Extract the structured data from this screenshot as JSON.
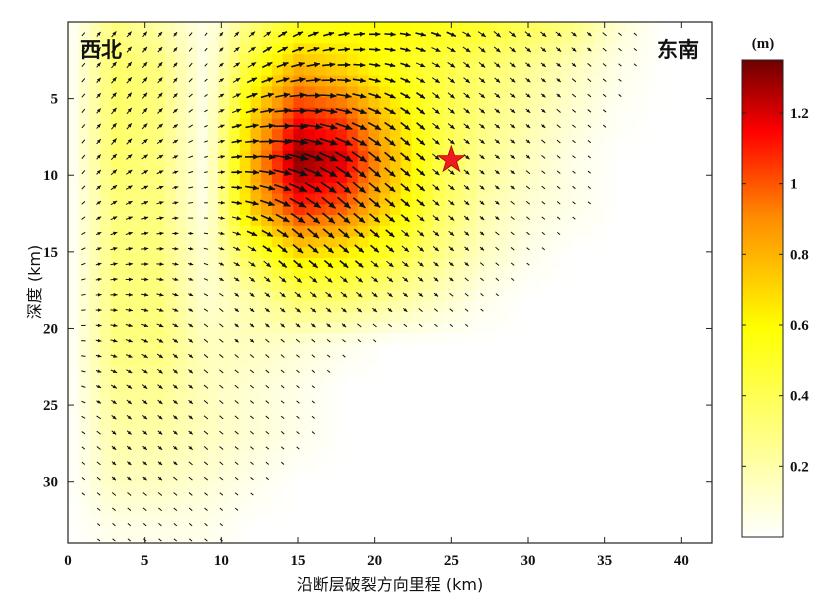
{
  "chart_data": {
    "type": "heatmap",
    "title": "",
    "xlabel": "沿断层破裂方向里程 (km)",
    "ylabel": "深度 (km)",
    "xlim": [
      0,
      42
    ],
    "ylim": [
      34,
      0
    ],
    "y_inverted": true,
    "xticks": [
      0,
      5,
      10,
      15,
      20,
      25,
      30,
      35,
      40
    ],
    "yticks": [
      5,
      10,
      15,
      20,
      25,
      30
    ],
    "grid": false,
    "colormap": [
      "#ffffff",
      "#ffff00",
      "#ff8c00",
      "#ff0000",
      "#6e0000"
    ],
    "colorbar": {
      "label": "(m)",
      "range": [
        0,
        1.35
      ],
      "ticks": [
        0.2,
        0.4,
        0.6,
        0.8,
        1,
        1.2
      ],
      "placement": "right"
    },
    "annotations": {
      "left": "西北",
      "right": "东南"
    },
    "marker": {
      "symbol": "star",
      "x": 25,
      "y": 9,
      "color": "#ee1c1c"
    },
    "arrows": "slip direction vectors, length proportional to slip",
    "grid_x_km": [
      0,
      3,
      6,
      9,
      12,
      15,
      18,
      21,
      24,
      27,
      30,
      33,
      36,
      39,
      42
    ],
    "grid_depth_km": [
      0,
      3,
      6,
      9,
      12,
      15,
      18,
      21,
      24,
      27,
      30,
      33
    ],
    "slip_m": [
      [
        0,
        0.3,
        0.2,
        0.05,
        0.3,
        0.5,
        0.55,
        0.6,
        0.55,
        0.5,
        0.4,
        0.3,
        0.1,
        0,
        0
      ],
      [
        0,
        0.35,
        0.3,
        0.05,
        0.5,
        0.8,
        0.7,
        0.55,
        0.45,
        0.35,
        0.25,
        0.15,
        0.05,
        0,
        0
      ],
      [
        0,
        0.35,
        0.3,
        0.05,
        0.7,
        1.1,
        1.0,
        0.7,
        0.45,
        0.3,
        0.2,
        0.1,
        0.02,
        0,
        0
      ],
      [
        0,
        0.35,
        0.3,
        0.05,
        0.8,
        1.32,
        1.2,
        0.8,
        0.45,
        0.25,
        0.15,
        0.05,
        0,
        0,
        0
      ],
      [
        0,
        0.3,
        0.3,
        0.05,
        0.75,
        1.1,
        1.0,
        0.7,
        0.4,
        0.2,
        0.1,
        0.05,
        0,
        0,
        0
      ],
      [
        0,
        0.3,
        0.3,
        0.1,
        0.45,
        0.7,
        0.65,
        0.5,
        0.3,
        0.15,
        0.05,
        0,
        0,
        0,
        0
      ],
      [
        0,
        0.3,
        0.3,
        0.1,
        0.2,
        0.35,
        0.35,
        0.25,
        0.15,
        0.05,
        0,
        0,
        0,
        0,
        0
      ],
      [
        0,
        0.3,
        0.3,
        0.15,
        0.15,
        0.1,
        0.05,
        0,
        0,
        0,
        0,
        0,
        0,
        0,
        0
      ],
      [
        0,
        0.25,
        0.25,
        0.15,
        0.1,
        0.05,
        0,
        0,
        0,
        0,
        0,
        0,
        0,
        0,
        0
      ],
      [
        0,
        0.2,
        0.2,
        0.15,
        0.1,
        0.05,
        0,
        0,
        0,
        0,
        0,
        0,
        0,
        0,
        0
      ],
      [
        0,
        0.15,
        0.15,
        0.1,
        0.05,
        0,
        0,
        0,
        0,
        0,
        0,
        0,
        0,
        0,
        0
      ],
      [
        0,
        0.05,
        0.05,
        0.05,
        0,
        0,
        0,
        0,
        0,
        0,
        0,
        0,
        0,
        0,
        0
      ]
    ]
  }
}
